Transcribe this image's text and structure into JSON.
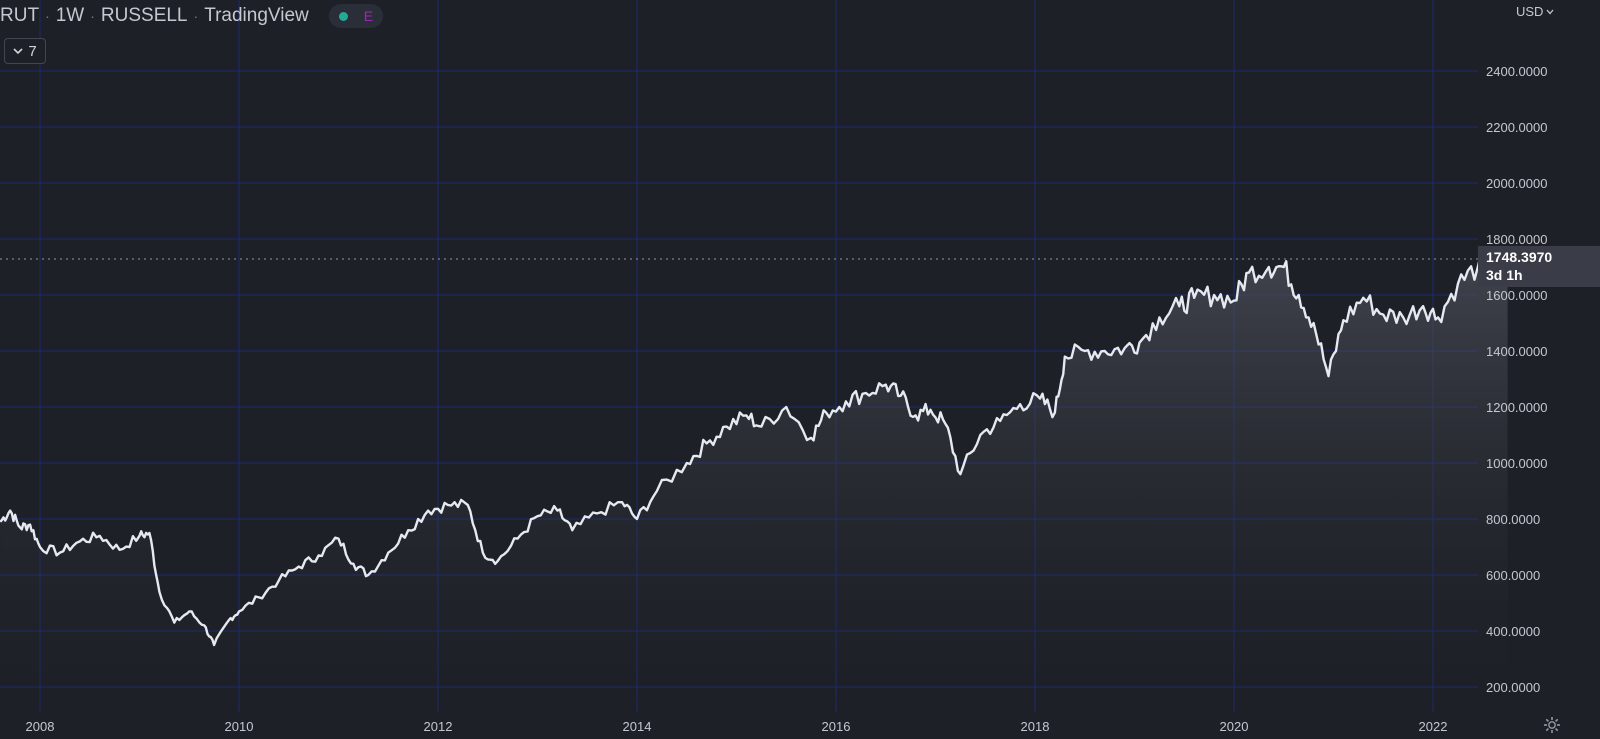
{
  "header": {
    "symbol": "RUT",
    "interval": "1W",
    "exchange": "RUSSELL",
    "source": "TradingView",
    "status_indicator": "E"
  },
  "collapse_button": {
    "label": "7",
    "icon": "chevron-down-icon"
  },
  "price_scale": {
    "currency": "USD",
    "tick_labels": [
      "2400.0000",
      "2200.0000",
      "2000.0000",
      "1800.0000",
      "1600.0000",
      "1400.0000",
      "1200.0000",
      "1000.0000",
      "800.0000",
      "600.0000",
      "400.0000",
      "200.0000"
    ],
    "last_price": "1748.3970",
    "countdown": "3d 1h"
  },
  "time_scale": {
    "tick_labels": [
      "2008",
      "2010",
      "2012",
      "2014",
      "2016",
      "2018",
      "2020",
      "2022"
    ]
  },
  "colors": {
    "background": "#1e2027",
    "grid": "#1d2a70",
    "line": "#e6e9f0",
    "status_dot": "#22ab94",
    "status_e": "#9c27b0"
  },
  "chart_data": {
    "type": "area",
    "x_unit": "year",
    "ylim": [
      200,
      2400
    ],
    "xlim": [
      2007.6,
      2022.8
    ],
    "grid": true,
    "points": [
      [
        2007.6,
        790
      ],
      [
        2007.7,
        830
      ],
      [
        2007.8,
        770
      ],
      [
        2007.9,
        780
      ],
      [
        2008.0,
        700
      ],
      [
        2008.2,
        680
      ],
      [
        2008.4,
        720
      ],
      [
        2008.6,
        740
      ],
      [
        2008.8,
        690
      ],
      [
        2009.0,
        740
      ],
      [
        2009.1,
        750
      ],
      [
        2009.2,
        540
      ],
      [
        2009.35,
        430
      ],
      [
        2009.5,
        470
      ],
      [
        2009.65,
        420
      ],
      [
        2009.75,
        350
      ],
      [
        2009.9,
        440
      ],
      [
        2010.0,
        470
      ],
      [
        2010.2,
        520
      ],
      [
        2010.4,
        580
      ],
      [
        2010.6,
        630
      ],
      [
        2010.8,
        670
      ],
      [
        2011.0,
        730
      ],
      [
        2011.15,
        640
      ],
      [
        2011.3,
        600
      ],
      [
        2011.5,
        680
      ],
      [
        2011.7,
        760
      ],
      [
        2011.9,
        830
      ],
      [
        2012.1,
        850
      ],
      [
        2012.3,
        850
      ],
      [
        2012.45,
        680
      ],
      [
        2012.6,
        650
      ],
      [
        2012.8,
        730
      ],
      [
        2013.0,
        810
      ],
      [
        2013.2,
        830
      ],
      [
        2013.35,
        760
      ],
      [
        2013.6,
        820
      ],
      [
        2013.85,
        860
      ],
      [
        2014.0,
        800
      ],
      [
        2014.2,
        900
      ],
      [
        2014.5,
        1000
      ],
      [
        2014.7,
        1070
      ],
      [
        2014.9,
        1130
      ],
      [
        2015.1,
        1170
      ],
      [
        2015.25,
        1130
      ],
      [
        2015.5,
        1200
      ],
      [
        2015.75,
        1090
      ],
      [
        2015.9,
        1180
      ],
      [
        2016.1,
        1220
      ],
      [
        2016.3,
        1250
      ],
      [
        2016.5,
        1280
      ],
      [
        2016.65,
        1240
      ],
      [
        2016.8,
        1170
      ],
      [
        2016.95,
        1190
      ],
      [
        2017.1,
        1140
      ],
      [
        2017.25,
        960
      ],
      [
        2017.45,
        1100
      ],
      [
        2017.65,
        1150
      ],
      [
        2017.85,
        1210
      ],
      [
        2018.05,
        1230
      ],
      [
        2018.2,
        1180
      ],
      [
        2018.3,
        1380
      ],
      [
        2018.5,
        1400
      ],
      [
        2018.7,
        1400
      ],
      [
        2018.9,
        1410
      ],
      [
        2019.05,
        1430
      ],
      [
        2019.25,
        1520
      ],
      [
        2019.45,
        1560
      ],
      [
        2019.6,
        1590
      ],
      [
        2019.8,
        1600
      ],
      [
        2020.0,
        1580
      ],
      [
        2020.15,
        1680
      ],
      [
        2020.35,
        1700
      ],
      [
        2020.5,
        1700
      ],
      [
        2020.65,
        1600
      ],
      [
        2020.8,
        1500
      ],
      [
        2020.95,
        1310
      ],
      [
        2021.1,
        1510
      ],
      [
        2021.3,
        1590
      ],
      [
        2021.5,
        1530
      ],
      [
        2021.7,
        1520
      ],
      [
        2021.9,
        1560
      ],
      [
        2022.05,
        1520
      ],
      [
        2022.25,
        1640
      ],
      [
        2022.45,
        1700
      ],
      [
        2022.6,
        1680
      ],
      [
        2022.75,
        1700
      ]
    ]
  }
}
